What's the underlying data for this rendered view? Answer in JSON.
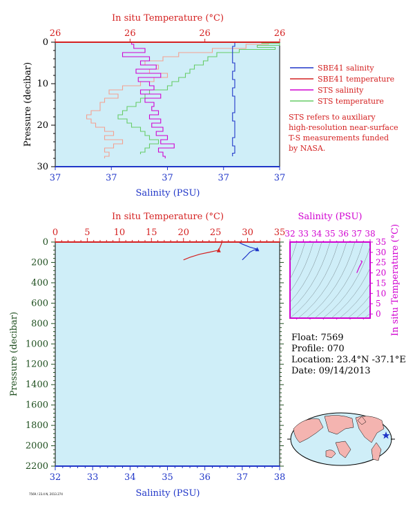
{
  "chart_data": [
    {
      "type": "line",
      "panel": "top",
      "top_axis_label": "In situ Temperature (°C)",
      "top_ticks": [
        "26",
        "26",
        "26",
        "26"
      ],
      "bottom_axis_label": "Salinity (PSU)",
      "bottom_ticks": [
        "37",
        "37",
        "37",
        "37",
        "37"
      ],
      "ylabel": "Pressure (decibar)",
      "y_ticks": [
        "0",
        "10",
        "20",
        "30"
      ],
      "ylim": [
        30,
        0
      ],
      "legend_placement": "right",
      "legend": [
        {
          "label": "SBE41 salinity",
          "color": "#1f35c8"
        },
        {
          "label": "SBE41 temperature",
          "color": "#d42020"
        },
        {
          "label": "STS salinity",
          "color": "#d000d0"
        },
        {
          "label": "STS temperature",
          "color": "#66cc66"
        }
      ],
      "note": [
        "STS refers to auxiliary",
        "high-resolution near-surface",
        "T-S measurements funded",
        "by NASA."
      ],
      "series": [
        {
          "name": "SBE41 salinity",
          "color": "#1f35c8",
          "pressure": [
            0,
            2,
            4,
            6,
            8,
            10,
            12,
            14,
            16,
            18,
            20,
            22,
            24,
            26,
            27.5
          ],
          "x_frac": [
            0.8,
            0.79,
            0.79,
            0.8,
            0.79,
            0.8,
            0.79,
            0.8,
            0.8,
            0.79,
            0.8,
            0.8,
            0.79,
            0.8,
            0.79
          ]
        },
        {
          "name": "STS salinity",
          "color": "#d000d0",
          "pressure": [
            0,
            1,
            2,
            3,
            4,
            5,
            6,
            7,
            8,
            9,
            10,
            11,
            12,
            13,
            14,
            15,
            16,
            17,
            18,
            19,
            20,
            21,
            22,
            23,
            24,
            25,
            26,
            27,
            28
          ],
          "x_frac": [
            0.34,
            0.35,
            0.4,
            0.3,
            0.42,
            0.38,
            0.45,
            0.36,
            0.47,
            0.37,
            0.42,
            0.44,
            0.38,
            0.47,
            0.4,
            0.44,
            0.43,
            0.46,
            0.42,
            0.47,
            0.43,
            0.48,
            0.45,
            0.5,
            0.47,
            0.53,
            0.46,
            0.48,
            0.49
          ]
        },
        {
          "name": "STS temperature",
          "color": "#66cc66",
          "pressure": [
            0,
            0.5,
            1,
            1.5,
            2,
            3,
            4,
            5,
            6,
            7,
            8,
            9,
            10,
            11,
            12,
            13,
            14,
            15,
            16,
            17,
            18,
            19,
            20,
            21,
            22,
            23,
            24,
            25,
            26,
            27
          ],
          "x_frac": [
            0.92,
            1.0,
            0.9,
            0.98,
            0.82,
            0.72,
            0.68,
            0.66,
            0.62,
            0.6,
            0.58,
            0.55,
            0.52,
            0.5,
            0.42,
            0.4,
            0.38,
            0.36,
            0.32,
            0.3,
            0.28,
            0.32,
            0.34,
            0.38,
            0.4,
            0.42,
            0.46,
            0.42,
            0.4,
            0.38
          ]
        },
        {
          "name": "SBE41 temperature",
          "color": "#f4a090",
          "pressure": [
            0,
            1,
            2,
            3,
            4,
            5,
            6,
            7,
            8,
            9,
            10,
            11,
            12,
            13,
            14,
            15,
            16,
            17,
            18,
            19,
            20,
            21,
            22,
            23,
            24,
            25,
            26,
            27,
            28
          ],
          "x_frac": [
            0.95,
            0.85,
            0.7,
            0.55,
            0.48,
            0.4,
            0.46,
            0.42,
            0.5,
            0.44,
            0.38,
            0.3,
            0.24,
            0.28,
            0.22,
            0.2,
            0.2,
            0.16,
            0.14,
            0.16,
            0.18,
            0.22,
            0.26,
            0.22,
            0.3,
            0.26,
            0.22,
            0.24,
            0.22
          ]
        }
      ]
    },
    {
      "type": "line",
      "panel": "bottom",
      "top_axis_label": "In situ Temperature (°C)",
      "x2lim": [
        0,
        35
      ],
      "x2_ticks": [
        "0",
        "5",
        "10",
        "15",
        "20",
        "25",
        "30",
        "35"
      ],
      "xlabel": "Salinity (PSU)",
      "xlim": [
        32,
        38
      ],
      "x_ticks": [
        "32",
        "33",
        "34",
        "35",
        "36",
        "37",
        "38"
      ],
      "ylabel": "Pressure (decibar)",
      "ylim": [
        2200,
        0
      ],
      "y_ticks": [
        "0",
        "200",
        "400",
        "600",
        "800",
        "1000",
        "1200",
        "1400",
        "1600",
        "1800",
        "2000",
        "2200"
      ],
      "series": [
        {
          "name": "SBE41 temperature",
          "color": "#d42020",
          "temperature": [
            26.0,
            25.9,
            25.7,
            25.5,
            24.0,
            22.5,
            21.0,
            20.0
          ],
          "pressure": [
            0,
            20,
            50,
            80,
            100,
            120,
            150,
            175
          ]
        },
        {
          "name": "SBE41 salinity",
          "color": "#1f35c8",
          "salinity": [
            36.9,
            37.0,
            37.2,
            37.4,
            37.3,
            37.2,
            37.1,
            37.0
          ],
          "pressure": [
            0,
            20,
            50,
            70,
            80,
            100,
            140,
            175
          ]
        }
      ]
    },
    {
      "type": "scatter",
      "panel": "ts-diagram",
      "top_axis_label": "Salinity (PSU)",
      "xlim": [
        32,
        38
      ],
      "x_ticks": [
        "32",
        "33",
        "34",
        "35",
        "36",
        "37",
        "38"
      ],
      "right_axis_label": "In situ Temperature (°C)",
      "ylim": [
        -2,
        35
      ],
      "y_ticks": [
        "0",
        "5",
        "10",
        "15",
        "20",
        "25",
        "30",
        "35"
      ],
      "series": [
        {
          "name": "T-S",
          "color": "#d000d0",
          "salinity": [
            37.0,
            37.1,
            37.2,
            37.4,
            37.3
          ],
          "temperature": [
            20.0,
            21.5,
            23.0,
            25.5,
            26.0
          ]
        }
      ]
    }
  ],
  "info": {
    "float": "Float:  7569",
    "profile": "Profile:  070",
    "location": "Location:  23.4°N  -37.1°E",
    "date": "Date:  09/14/2013"
  },
  "footer_code": "7569 / 23.4 N, 2013.274",
  "colors": {
    "temperature_axis": "#d42020",
    "salinity_axis": "#1f35c8",
    "pressure_axis": "#1f4f1f",
    "ts_axis": "#d000d0",
    "plot_bg": "#cfeef8"
  }
}
